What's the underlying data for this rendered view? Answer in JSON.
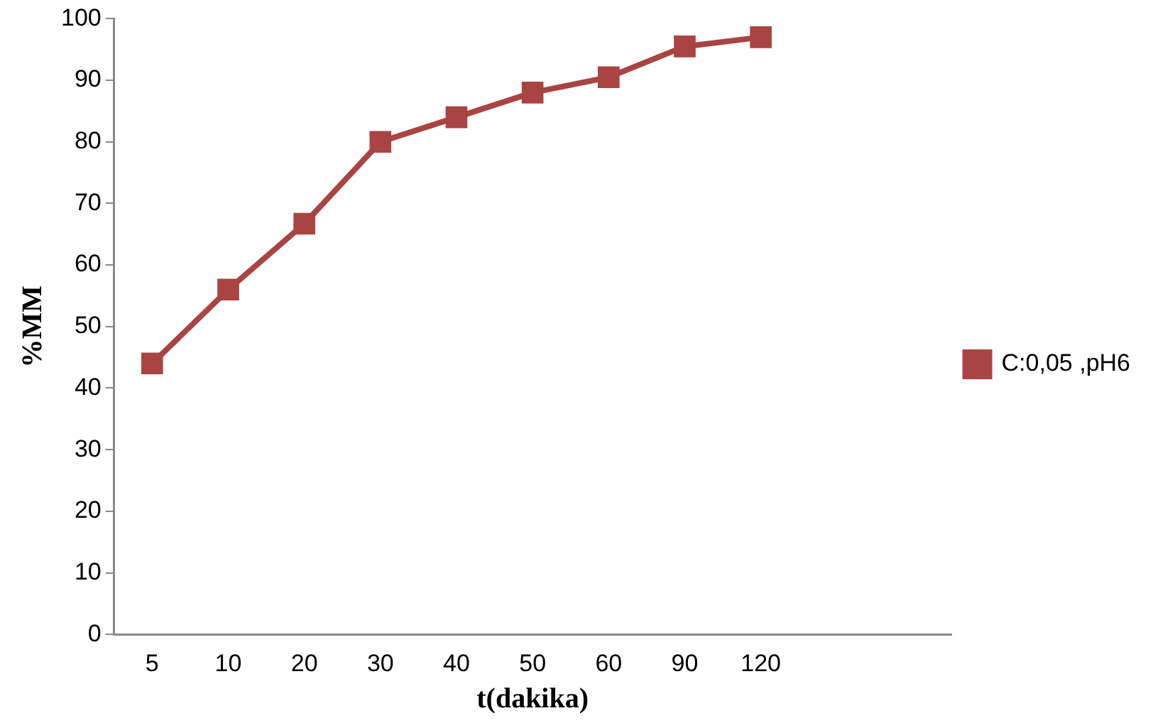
{
  "chart_data": {
    "type": "line",
    "xlabel": "t(dakika)",
    "ylabel": "%MM",
    "categories": [
      "5",
      "10",
      "20",
      "30",
      "40",
      "50",
      "60",
      "90",
      "120",
      null,
      null
    ],
    "series": [
      {
        "name": "C:0,05 ,pH6",
        "color": "#a94442",
        "values": [
          44,
          56,
          66.7,
          80,
          84,
          88,
          90.5,
          95.5,
          97,
          null,
          null
        ]
      }
    ],
    "ylim": [
      0,
      100
    ],
    "yticks": [
      0,
      10,
      20,
      30,
      40,
      50,
      60,
      70,
      80,
      90,
      100
    ],
    "grid": false,
    "legend": "right",
    "marker": "square",
    "line_style": "solid"
  }
}
